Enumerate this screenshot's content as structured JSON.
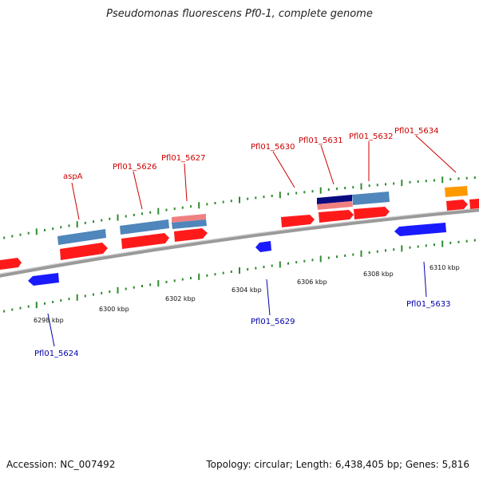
{
  "title": "Pseudomonas fluorescens Pf0-1, complete genome",
  "footer": {
    "accession": "Accession: NC_007492",
    "summary": "Topology: circular; Length: 6,438,405 bp; Genes: 5,816"
  },
  "colors": {
    "backbone": "#8c8c8c",
    "tick": "#2e8b2e",
    "forward_gene": "#ff1a1a",
    "reverse_gene": "#1a1aff",
    "cds_blue": "#4f86bb",
    "cds_pink": "#f08080",
    "cds_navy": "#0a0a80",
    "cds_orange": "#ff9900",
    "label_forward": "#cc0000",
    "label_reverse": "#0000aa"
  },
  "scale_labels": [
    "6298 kbp",
    "6300 kbp",
    "6302 kbp",
    "6304 kbp",
    "6306 kbp",
    "6308 kbp",
    "6310 kbp"
  ],
  "gene_labels_forward": [
    "aspA",
    "Pfl01_5626",
    "Pfl01_5627",
    "Pfl01_5630",
    "Pfl01_5631",
    "Pfl01_5632",
    "Pfl01_5634"
  ],
  "gene_labels_reverse": [
    "Pfl01_5624",
    "Pfl01_5629",
    "Pfl01_5633"
  ]
}
